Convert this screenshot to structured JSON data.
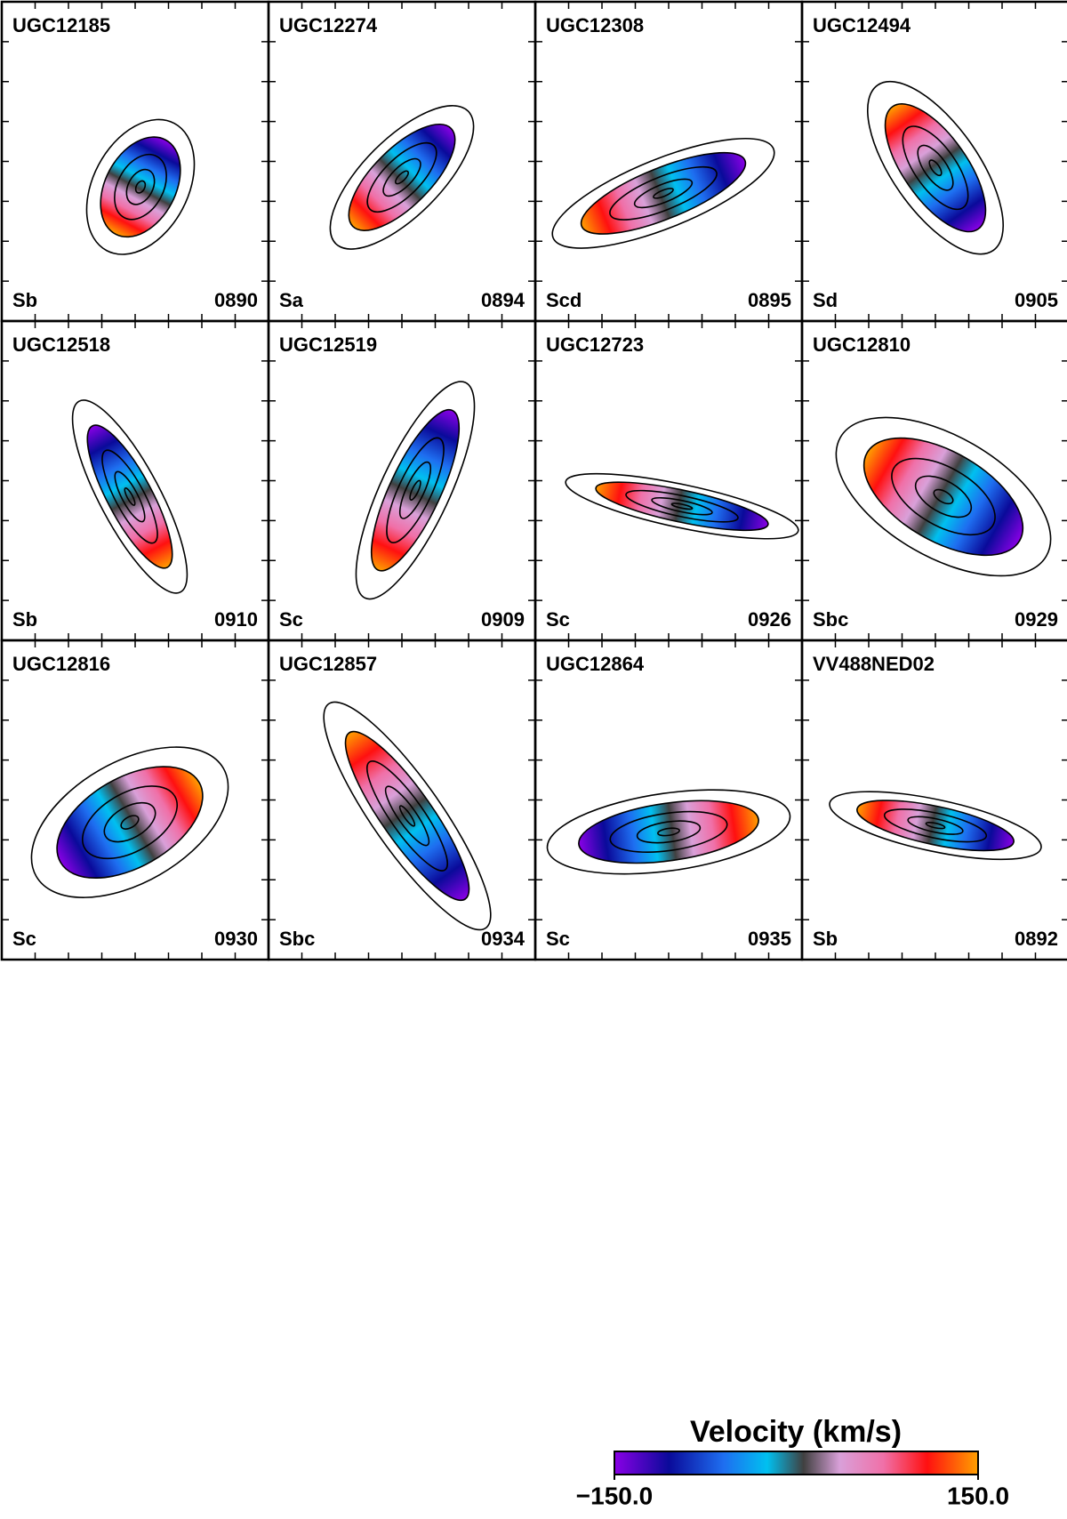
{
  "panels": [
    {
      "name": "UGC12185",
      "type": "Sb",
      "id": "0890"
    },
    {
      "name": "UGC12274",
      "type": "Sa",
      "id": "0894"
    },
    {
      "name": "UGC12308",
      "type": "Scd",
      "id": "0895"
    },
    {
      "name": "UGC12494",
      "type": "Sd",
      "id": "0905"
    },
    {
      "name": "UGC12518",
      "type": "Sb",
      "id": "0910"
    },
    {
      "name": "UGC12519",
      "type": "Sc",
      "id": "0909"
    },
    {
      "name": "UGC12723",
      "type": "Sc",
      "id": "0926"
    },
    {
      "name": "UGC12810",
      "type": "Sbc",
      "id": "0929"
    },
    {
      "name": "UGC12816",
      "type": "Sc",
      "id": "0930"
    },
    {
      "name": "UGC12857",
      "type": "Sbc",
      "id": "0934"
    },
    {
      "name": "UGC12864",
      "type": "Sc",
      "id": "0935"
    },
    {
      "name": "VV488NED02",
      "type": "Sb",
      "id": "0892"
    }
  ],
  "colorbar": {
    "title": "Velocity (km/s)",
    "ticks": [
      {
        "value": -150,
        "label": "−150.0"
      },
      {
        "value": 150,
        "label": "150.0"
      }
    ]
  }
}
